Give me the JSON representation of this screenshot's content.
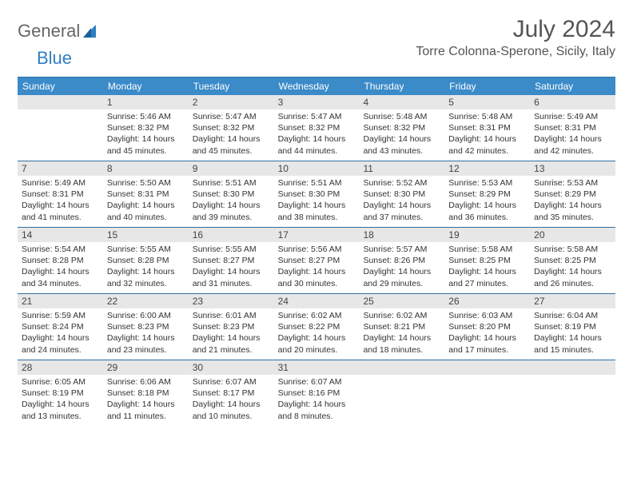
{
  "brand": {
    "part1": "General",
    "part2": "Blue"
  },
  "title": "July 2024",
  "location": "Torre Colonna-Sperone, Sicily, Italy",
  "colors": {
    "header_bar": "#3b8bc9",
    "row_border": "#2f6fa3",
    "daynum_bg": "#e7e7e7",
    "text": "#333333",
    "brand_gray": "#666666",
    "brand_blue": "#2f7fc2"
  },
  "days_of_week": [
    "Sunday",
    "Monday",
    "Tuesday",
    "Wednesday",
    "Thursday",
    "Friday",
    "Saturday"
  ],
  "weeks": [
    [
      {
        "n": "",
        "sunrise": "",
        "sunset": "",
        "daylight": ""
      },
      {
        "n": "1",
        "sunrise": "Sunrise: 5:46 AM",
        "sunset": "Sunset: 8:32 PM",
        "daylight": "Daylight: 14 hours and 45 minutes."
      },
      {
        "n": "2",
        "sunrise": "Sunrise: 5:47 AM",
        "sunset": "Sunset: 8:32 PM",
        "daylight": "Daylight: 14 hours and 45 minutes."
      },
      {
        "n": "3",
        "sunrise": "Sunrise: 5:47 AM",
        "sunset": "Sunset: 8:32 PM",
        "daylight": "Daylight: 14 hours and 44 minutes."
      },
      {
        "n": "4",
        "sunrise": "Sunrise: 5:48 AM",
        "sunset": "Sunset: 8:32 PM",
        "daylight": "Daylight: 14 hours and 43 minutes."
      },
      {
        "n": "5",
        "sunrise": "Sunrise: 5:48 AM",
        "sunset": "Sunset: 8:31 PM",
        "daylight": "Daylight: 14 hours and 42 minutes."
      },
      {
        "n": "6",
        "sunrise": "Sunrise: 5:49 AM",
        "sunset": "Sunset: 8:31 PM",
        "daylight": "Daylight: 14 hours and 42 minutes."
      }
    ],
    [
      {
        "n": "7",
        "sunrise": "Sunrise: 5:49 AM",
        "sunset": "Sunset: 8:31 PM",
        "daylight": "Daylight: 14 hours and 41 minutes."
      },
      {
        "n": "8",
        "sunrise": "Sunrise: 5:50 AM",
        "sunset": "Sunset: 8:31 PM",
        "daylight": "Daylight: 14 hours and 40 minutes."
      },
      {
        "n": "9",
        "sunrise": "Sunrise: 5:51 AM",
        "sunset": "Sunset: 8:30 PM",
        "daylight": "Daylight: 14 hours and 39 minutes."
      },
      {
        "n": "10",
        "sunrise": "Sunrise: 5:51 AM",
        "sunset": "Sunset: 8:30 PM",
        "daylight": "Daylight: 14 hours and 38 minutes."
      },
      {
        "n": "11",
        "sunrise": "Sunrise: 5:52 AM",
        "sunset": "Sunset: 8:30 PM",
        "daylight": "Daylight: 14 hours and 37 minutes."
      },
      {
        "n": "12",
        "sunrise": "Sunrise: 5:53 AM",
        "sunset": "Sunset: 8:29 PM",
        "daylight": "Daylight: 14 hours and 36 minutes."
      },
      {
        "n": "13",
        "sunrise": "Sunrise: 5:53 AM",
        "sunset": "Sunset: 8:29 PM",
        "daylight": "Daylight: 14 hours and 35 minutes."
      }
    ],
    [
      {
        "n": "14",
        "sunrise": "Sunrise: 5:54 AM",
        "sunset": "Sunset: 8:28 PM",
        "daylight": "Daylight: 14 hours and 34 minutes."
      },
      {
        "n": "15",
        "sunrise": "Sunrise: 5:55 AM",
        "sunset": "Sunset: 8:28 PM",
        "daylight": "Daylight: 14 hours and 32 minutes."
      },
      {
        "n": "16",
        "sunrise": "Sunrise: 5:55 AM",
        "sunset": "Sunset: 8:27 PM",
        "daylight": "Daylight: 14 hours and 31 minutes."
      },
      {
        "n": "17",
        "sunrise": "Sunrise: 5:56 AM",
        "sunset": "Sunset: 8:27 PM",
        "daylight": "Daylight: 14 hours and 30 minutes."
      },
      {
        "n": "18",
        "sunrise": "Sunrise: 5:57 AM",
        "sunset": "Sunset: 8:26 PM",
        "daylight": "Daylight: 14 hours and 29 minutes."
      },
      {
        "n": "19",
        "sunrise": "Sunrise: 5:58 AM",
        "sunset": "Sunset: 8:25 PM",
        "daylight": "Daylight: 14 hours and 27 minutes."
      },
      {
        "n": "20",
        "sunrise": "Sunrise: 5:58 AM",
        "sunset": "Sunset: 8:25 PM",
        "daylight": "Daylight: 14 hours and 26 minutes."
      }
    ],
    [
      {
        "n": "21",
        "sunrise": "Sunrise: 5:59 AM",
        "sunset": "Sunset: 8:24 PM",
        "daylight": "Daylight: 14 hours and 24 minutes."
      },
      {
        "n": "22",
        "sunrise": "Sunrise: 6:00 AM",
        "sunset": "Sunset: 8:23 PM",
        "daylight": "Daylight: 14 hours and 23 minutes."
      },
      {
        "n": "23",
        "sunrise": "Sunrise: 6:01 AM",
        "sunset": "Sunset: 8:23 PM",
        "daylight": "Daylight: 14 hours and 21 minutes."
      },
      {
        "n": "24",
        "sunrise": "Sunrise: 6:02 AM",
        "sunset": "Sunset: 8:22 PM",
        "daylight": "Daylight: 14 hours and 20 minutes."
      },
      {
        "n": "25",
        "sunrise": "Sunrise: 6:02 AM",
        "sunset": "Sunset: 8:21 PM",
        "daylight": "Daylight: 14 hours and 18 minutes."
      },
      {
        "n": "26",
        "sunrise": "Sunrise: 6:03 AM",
        "sunset": "Sunset: 8:20 PM",
        "daylight": "Daylight: 14 hours and 17 minutes."
      },
      {
        "n": "27",
        "sunrise": "Sunrise: 6:04 AM",
        "sunset": "Sunset: 8:19 PM",
        "daylight": "Daylight: 14 hours and 15 minutes."
      }
    ],
    [
      {
        "n": "28",
        "sunrise": "Sunrise: 6:05 AM",
        "sunset": "Sunset: 8:19 PM",
        "daylight": "Daylight: 14 hours and 13 minutes."
      },
      {
        "n": "29",
        "sunrise": "Sunrise: 6:06 AM",
        "sunset": "Sunset: 8:18 PM",
        "daylight": "Daylight: 14 hours and 11 minutes."
      },
      {
        "n": "30",
        "sunrise": "Sunrise: 6:07 AM",
        "sunset": "Sunset: 8:17 PM",
        "daylight": "Daylight: 14 hours and 10 minutes."
      },
      {
        "n": "31",
        "sunrise": "Sunrise: 6:07 AM",
        "sunset": "Sunset: 8:16 PM",
        "daylight": "Daylight: 14 hours and 8 minutes."
      },
      {
        "n": "",
        "sunrise": "",
        "sunset": "",
        "daylight": ""
      },
      {
        "n": "",
        "sunrise": "",
        "sunset": "",
        "daylight": ""
      },
      {
        "n": "",
        "sunrise": "",
        "sunset": "",
        "daylight": ""
      }
    ]
  ]
}
